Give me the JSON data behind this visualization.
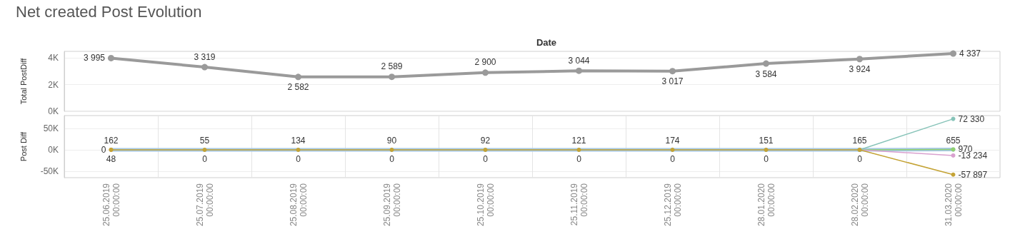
{
  "chart_data": [
    {
      "type": "line",
      "title": "Net created Post Evolution",
      "xlabel": "Date",
      "ylabel": "Total PostDiff",
      "tick_labels": "y",
      "marker": "circle",
      "grid": "y",
      "categories": [
        null,
        null,
        null,
        null,
        null,
        null,
        null,
        null,
        null,
        null
      ],
      "ylim": [
        0,
        4500
      ],
      "yticks": [
        {
          "value": 0,
          "label": "0K"
        },
        {
          "value": 2000,
          "label": "2K"
        },
        {
          "value": 4000,
          "label": "4K"
        }
      ],
      "series": [
        {
          "color": "#9a9a9a",
          "values": [
            3995,
            3319,
            2582,
            2589,
            2900,
            3044,
            3017,
            3584,
            3924,
            4337
          ],
          "value_labels": [
            "3 995",
            "3 319",
            "2 582",
            "2 589",
            "2 900",
            "3 044",
            "3 017",
            "3 584",
            "3 924",
            "4 337"
          ]
        }
      ]
    },
    {
      "type": "line",
      "ylabel": "Post Diff",
      "marker": "circle",
      "grid": "y",
      "categories": [
        "25.06.2019 00:00:00",
        "25.07.2019 00:00:00",
        "25.08.2019 00:00:00",
        "25.09.2019 00:00:00",
        "25.10.2019 00:00:00",
        "25.11.2019 00:00:00",
        "25.12.2019 00:00:00",
        "28.01.2020 00:00:00",
        "28.02.2020 00:00:00",
        "31.03.2020 00:00:00"
      ],
      "ylim": [
        -65000,
        80000
      ],
      "yticks": [
        {
          "value": -50000,
          "label": "-50K"
        },
        {
          "value": 0,
          "label": "0K"
        },
        {
          "value": 50000,
          "label": "50K"
        }
      ],
      "series": [
        {
          "color": "#a6c8e4",
          "values": [
            162,
            55,
            134,
            90,
            92,
            121,
            174,
            151,
            165,
            655
          ],
          "value_labels": [
            "162",
            "55",
            "134",
            "90",
            "92",
            "121",
            "174",
            "151",
            "165",
            "655"
          ]
        },
        {
          "color": "#c4a335",
          "values": [
            48,
            0,
            0,
            0,
            0,
            0,
            0,
            0,
            0,
            -57897
          ],
          "value_labels": [
            "48",
            "0",
            "0",
            "0",
            "0",
            "0",
            "0",
            "0",
            "0",
            "-57 897"
          ]
        },
        {
          "color": "#f0a35a",
          "values": [
            0,
            null,
            null,
            null,
            null,
            null,
            null,
            null,
            null,
            null
          ],
          "value_labels": [
            "0",
            null,
            null,
            null,
            null,
            null,
            null,
            null,
            null,
            null
          ]
        },
        {
          "color": "#86c3b8",
          "values": [
            null,
            null,
            null,
            null,
            null,
            null,
            null,
            null,
            0,
            72330
          ],
          "value_labels": [
            null,
            null,
            null,
            null,
            null,
            null,
            null,
            null,
            null,
            "72 330"
          ]
        },
        {
          "color": "#d9a1cf",
          "values": [
            null,
            null,
            null,
            null,
            null,
            null,
            null,
            null,
            0,
            -13234
          ],
          "value_labels": [
            null,
            null,
            null,
            null,
            null,
            null,
            null,
            null,
            null,
            "-13 234"
          ]
        },
        {
          "color": "#8fd06f",
          "values": [
            null,
            null,
            null,
            null,
            null,
            null,
            null,
            null,
            0,
            970
          ],
          "value_labels": [
            null,
            null,
            null,
            null,
            null,
            null,
            null,
            null,
            null,
            "970"
          ]
        }
      ]
    }
  ]
}
